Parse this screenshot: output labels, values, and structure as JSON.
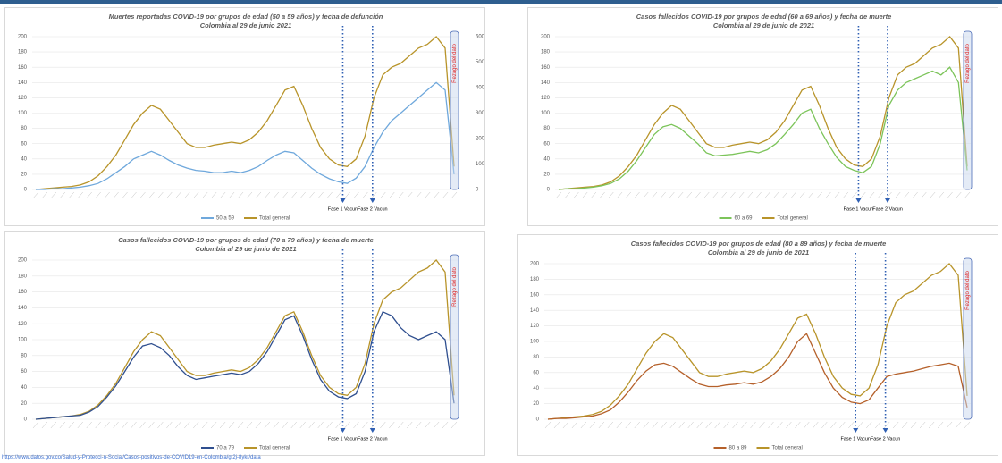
{
  "chart_data": [
    {
      "type": "line",
      "title": "Muertes reportadas COVID-19 por grupos de edad (50 a 59 años) y fecha de defunción",
      "subtitle": "Colombia al 29 de junio 2021",
      "categories": [
        null,
        null,
        null,
        null,
        null,
        null,
        null,
        null,
        null,
        null,
        null,
        null,
        null,
        null,
        null,
        null,
        null,
        null,
        null,
        null,
        null,
        null,
        null,
        null,
        null,
        null,
        null,
        null,
        null,
        null,
        null,
        null,
        null,
        null,
        null,
        null,
        null,
        null,
        null,
        null,
        null,
        null,
        null,
        null,
        null,
        null,
        null,
        null
      ],
      "series": [
        {
          "name": "50 a 59",
          "color": "#6fa8dc",
          "values": [
            0,
            0,
            1,
            1,
            2,
            3,
            5,
            8,
            14,
            22,
            30,
            40,
            45,
            50,
            45,
            38,
            32,
            28,
            25,
            24,
            22,
            22,
            24,
            22,
            25,
            30,
            38,
            45,
            50,
            48,
            38,
            28,
            20,
            14,
            10,
            8,
            15,
            30,
            55,
            75,
            90,
            100,
            110,
            120,
            130,
            140,
            130,
            20
          ]
        },
        {
          "name": "Total general",
          "color": "#b8942a",
          "values": [
            0,
            1,
            2,
            3,
            4,
            6,
            10,
            18,
            30,
            45,
            65,
            85,
            100,
            110,
            105,
            90,
            75,
            60,
            55,
            55,
            58,
            60,
            62,
            60,
            65,
            75,
            90,
            110,
            130,
            135,
            110,
            80,
            55,
            40,
            32,
            30,
            40,
            70,
            120,
            150,
            160,
            165,
            175,
            185,
            190,
            200,
            185,
            30
          ]
        }
      ],
      "ylim": [
        0,
        200
      ],
      "yticks": [
        0,
        20,
        40,
        60,
        80,
        100,
        120,
        140,
        160,
        180,
        200
      ],
      "y2lim": [
        0,
        600
      ],
      "y2ticks": [
        0,
        100,
        200,
        300,
        400,
        500,
        600
      ],
      "annotations": [
        "Fase 1  Vacun",
        "Fase 2  Vacun",
        "Rezago del dato"
      ]
    },
    {
      "type": "line",
      "title": "Casos fallecidos COVID-19 por grupos de edad (60 a 69 años) y fecha de muerte",
      "subtitle": "Colombia al 29 de junio de 2021",
      "categories": [
        null,
        null,
        null,
        null,
        null,
        null,
        null,
        null,
        null,
        null,
        null,
        null,
        null,
        null,
        null,
        null,
        null,
        null,
        null,
        null,
        null,
        null,
        null,
        null,
        null,
        null,
        null,
        null,
        null,
        null,
        null,
        null,
        null,
        null,
        null,
        null,
        null,
        null,
        null,
        null,
        null,
        null,
        null,
        null,
        null,
        null,
        null,
        null
      ],
      "series": [
        {
          "name": "60 a 69",
          "color": "#7cc45a",
          "values": [
            0,
            1,
            1,
            2,
            3,
            5,
            8,
            14,
            24,
            38,
            55,
            72,
            82,
            85,
            80,
            70,
            60,
            48,
            44,
            45,
            46,
            48,
            50,
            48,
            52,
            60,
            72,
            85,
            100,
            105,
            80,
            60,
            42,
            30,
            25,
            22,
            30,
            60,
            110,
            130,
            140,
            145,
            150,
            155,
            150,
            160,
            140,
            25
          ]
        },
        {
          "name": "Total general",
          "color": "#b8942a",
          "values": [
            0,
            1,
            2,
            3,
            4,
            6,
            10,
            18,
            30,
            45,
            65,
            85,
            100,
            110,
            105,
            90,
            75,
            60,
            55,
            55,
            58,
            60,
            62,
            60,
            65,
            75,
            90,
            110,
            130,
            135,
            110,
            80,
            55,
            40,
            32,
            30,
            40,
            70,
            120,
            150,
            160,
            165,
            175,
            185,
            190,
            200,
            185,
            30
          ]
        }
      ],
      "ylim": [
        0,
        200
      ],
      "yticks": [
        0,
        20,
        40,
        60,
        80,
        100,
        120,
        140,
        160,
        180,
        200
      ],
      "annotations": [
        "Fase 1  Vacun",
        "Fase 2  Vacun",
        "Rezago del dato"
      ]
    },
    {
      "type": "line",
      "title": "Casos  fallecidos COVID-19 por grupos de edad (70 a 79 años) y fecha de muerte",
      "subtitle": "Colombia al 29 de junio de 2021",
      "categories": [
        null,
        null,
        null,
        null,
        null,
        null,
        null,
        null,
        null,
        null,
        null,
        null,
        null,
        null,
        null,
        null,
        null,
        null,
        null,
        null,
        null,
        null,
        null,
        null,
        null,
        null,
        null,
        null,
        null,
        null,
        null,
        null,
        null,
        null,
        null,
        null,
        null,
        null,
        null,
        null,
        null,
        null,
        null,
        null,
        null,
        null,
        null,
        null
      ],
      "series": [
        {
          "name": "70 a 79",
          "color": "#2f4f8f",
          "values": [
            0,
            1,
            2,
            3,
            4,
            5,
            9,
            16,
            28,
            42,
            60,
            78,
            92,
            95,
            90,
            80,
            66,
            55,
            50,
            52,
            54,
            56,
            58,
            56,
            60,
            70,
            85,
            105,
            125,
            130,
            105,
            75,
            50,
            35,
            28,
            26,
            32,
            60,
            110,
            135,
            130,
            115,
            105,
            100,
            105,
            110,
            100,
            20
          ]
        },
        {
          "name": "Total general",
          "color": "#b8942a",
          "values": [
            0,
            1,
            2,
            3,
            4,
            6,
            10,
            18,
            30,
            45,
            65,
            85,
            100,
            110,
            105,
            90,
            75,
            60,
            55,
            55,
            58,
            60,
            62,
            60,
            65,
            75,
            90,
            110,
            130,
            135,
            110,
            80,
            55,
            40,
            32,
            30,
            40,
            70,
            120,
            150,
            160,
            165,
            175,
            185,
            190,
            200,
            185,
            30
          ]
        }
      ],
      "ylim": [
        0,
        200
      ],
      "yticks": [
        0,
        20,
        40,
        60,
        80,
        100,
        120,
        140,
        160,
        180,
        200
      ],
      "annotations": [
        "Fase 1  Vacun",
        "Fase 2  Vacun",
        "Rezago del dato"
      ]
    },
    {
      "type": "line",
      "title": "Casos fallecidos COVID-19 por grupos de edad (80 a 89 años) y fecha de muerte",
      "subtitle": "Colombia al 29 de junio de 2021",
      "categories": [
        null,
        null,
        null,
        null,
        null,
        null,
        null,
        null,
        null,
        null,
        null,
        null,
        null,
        null,
        null,
        null,
        null,
        null,
        null,
        null,
        null,
        null,
        null,
        null,
        null,
        null,
        null,
        null,
        null,
        null,
        null,
        null,
        null,
        null,
        null,
        null,
        null,
        null,
        null,
        null,
        null,
        null,
        null,
        null,
        null,
        null,
        null,
        null
      ],
      "series": [
        {
          "name": "80 a 89",
          "color": "#b5602a",
          "values": [
            0,
            1,
            1,
            2,
            3,
            4,
            7,
            12,
            22,
            35,
            50,
            62,
            70,
            72,
            68,
            60,
            52,
            45,
            42,
            42,
            44,
            45,
            47,
            45,
            48,
            55,
            65,
            80,
            100,
            110,
            85,
            60,
            40,
            28,
            22,
            20,
            25,
            40,
            55,
            58,
            60,
            62,
            65,
            68,
            70,
            72,
            68,
            15
          ]
        },
        {
          "name": "Total general",
          "color": "#b8942a",
          "values": [
            0,
            1,
            2,
            3,
            4,
            6,
            10,
            18,
            30,
            45,
            65,
            85,
            100,
            110,
            105,
            90,
            75,
            60,
            55,
            55,
            58,
            60,
            62,
            60,
            65,
            75,
            90,
            110,
            130,
            135,
            110,
            80,
            55,
            40,
            32,
            30,
            40,
            70,
            120,
            150,
            160,
            165,
            175,
            185,
            190,
            200,
            185,
            30
          ]
        }
      ],
      "ylim": [
        0,
        200
      ],
      "yticks": [
        0,
        20,
        40,
        60,
        80,
        100,
        120,
        140,
        160,
        180,
        200
      ],
      "annotations": [
        "Fase 1  Vacun",
        "Fase 2  Vacun",
        "Rezago del dato"
      ]
    }
  ],
  "source": "https://www.datos.gov.co/Salud-y-Protecci-n-Social/Casos-positivos-de-COVID19-en-Colombia/gt2j-8ykr/data"
}
